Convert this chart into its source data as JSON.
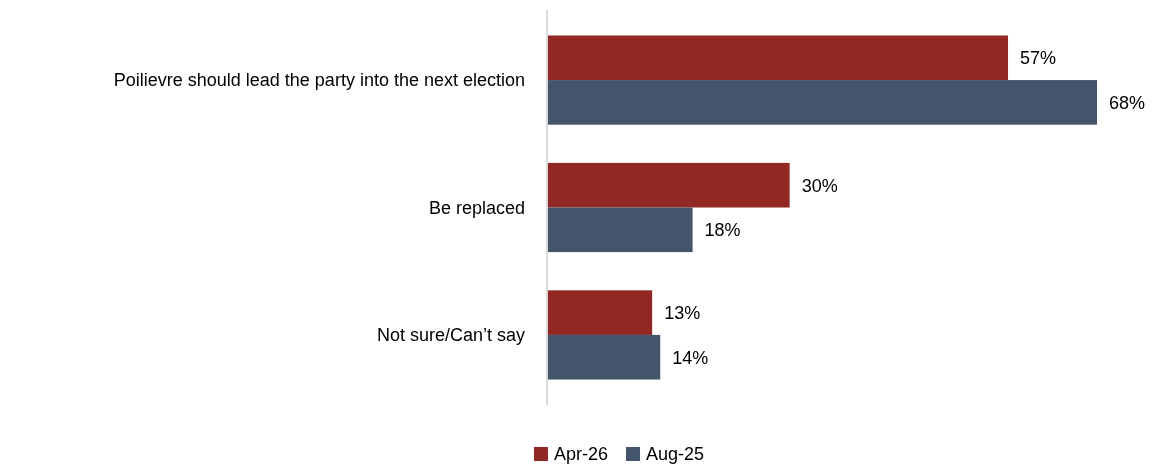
{
  "chart_data": {
    "type": "bar",
    "orientation": "horizontal",
    "categories": [
      "Poilievre should lead the party into the next election",
      "Be replaced",
      "Not sure/Can’t say"
    ],
    "series": [
      {
        "name": "Apr-26",
        "color": "#922824",
        "values": [
          57,
          30,
          13
        ],
        "value_labels": [
          "57%",
          "30%",
          "13%"
        ]
      },
      {
        "name": "Aug-25",
        "color": "#44546a",
        "values": [
          68,
          18,
          14
        ],
        "value_labels": [
          "68%",
          "18%",
          "14%"
        ]
      }
    ],
    "xlim": [
      0,
      68
    ],
    "tick_labels": "y",
    "grid": false,
    "legend": "bottom"
  }
}
